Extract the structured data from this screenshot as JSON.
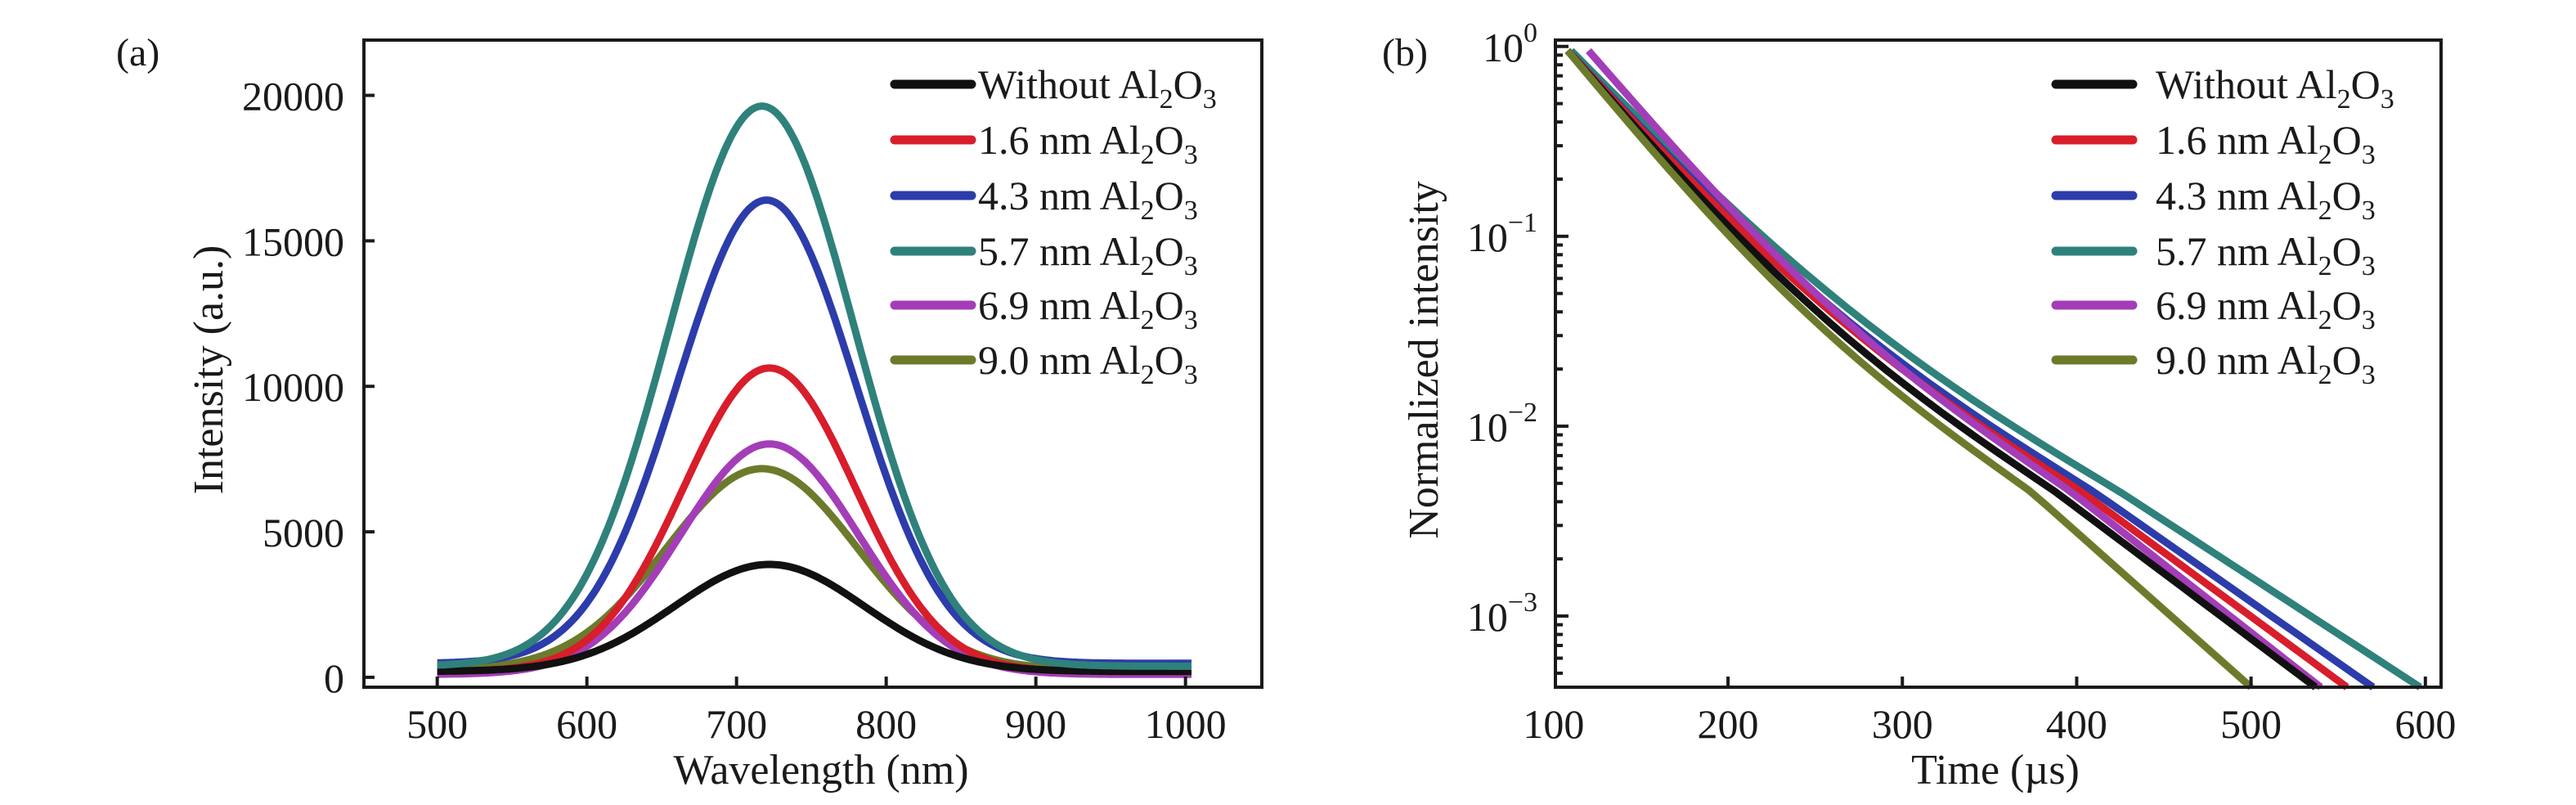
{
  "chart_data": [
    {
      "panel": "(a)",
      "type": "line",
      "title": "",
      "xlabel": "Wavelength (nm)",
      "ylabel": "Intensity (a.u.)",
      "xlim": [
        451,
        1051
      ],
      "ylim": [
        -340,
        21900
      ],
      "xticks": [
        500,
        600,
        700,
        800,
        900,
        1000
      ],
      "xtick_labels": [
        "500",
        "600",
        "700",
        "800",
        "900",
        "1000"
      ],
      "yticks": [
        0,
        5000,
        10000,
        15000,
        20000
      ],
      "ytick_labels": [
        "0",
        "5000",
        "10000",
        "15000",
        "20000"
      ],
      "grid": false,
      "legend_position": "top-right",
      "x_range": [
        500,
        1005
      ],
      "series": [
        {
          "name": "Without Al2O3",
          "label_main": "Without Al",
          "label_mid": "O",
          "color": "#111111",
          "peak_wavelength": 722,
          "peak_intensity": 3880,
          "baseline": 200,
          "fwhm_nm": 150
        },
        {
          "name": "1.6 nm Al2O3",
          "label_main": "1.6 nm Al",
          "label_mid": "O",
          "color": "#d81d2b",
          "peak_wavelength": 722,
          "peak_intensity": 10630,
          "baseline": 200,
          "fwhm_nm": 135
        },
        {
          "name": "4.3 nm Al2O3",
          "label_main": "4.3 nm Al",
          "label_mid": "O",
          "color": "#2c3cab",
          "peak_wavelength": 720,
          "peak_intensity": 16400,
          "baseline": 480,
          "fwhm_nm": 140
        },
        {
          "name": "5.7 nm Al2O3",
          "label_main": "5.7 nm Al",
          "label_mid": "O",
          "color": "#2f817b",
          "peak_wavelength": 717,
          "peak_intensity": 19630,
          "baseline": 380,
          "fwhm_nm": 145
        },
        {
          "name": "6.9 nm Al2O3",
          "label_main": "6.9 nm Al",
          "label_mid": "O",
          "color": "#a43db8",
          "peak_wavelength": 722,
          "peak_intensity": 8020,
          "baseline": 100,
          "fwhm_nm": 140
        },
        {
          "name": "9.0 nm Al2O3",
          "label_main": "9.0 nm Al",
          "label_mid": "O",
          "color": "#6c7b2b",
          "peak_wavelength": 717,
          "peak_intensity": 7170,
          "baseline": 260,
          "fwhm_nm": 150
        }
      ]
    },
    {
      "panel": "(b)",
      "type": "line",
      "title": "",
      "xlabel": "Time (µs)",
      "ylabel": "Normalized intensity",
      "yscale": "log",
      "xlim": [
        101,
        609
      ],
      "ylim": [
        0.000422,
        1.08
      ],
      "xticks": [
        100,
        200,
        300,
        400,
        500,
        600
      ],
      "xtick_labels": [
        "100",
        "200",
        "300",
        "400",
        "500",
        "600"
      ],
      "yticks": [
        1,
        0.1,
        0.01,
        0.001
      ],
      "ytick_labels": [
        {
          "base": "10",
          "exp": "0"
        },
        {
          "base": "10",
          "exp": "−1"
        },
        {
          "base": "10",
          "exp": "−2"
        },
        {
          "base": "10",
          "exp": "−3"
        }
      ],
      "grid": false,
      "legend_position": "top-right",
      "series": [
        {
          "name": "Without Al2O3",
          "label_main": "Without Al",
          "label_mid": "O",
          "color": "#111111",
          "t_start": 108,
          "t_at_0_0045": 388,
          "t_end": 537
        },
        {
          "name": "1.6 nm Al2O3",
          "label_main": "1.6 nm Al",
          "label_mid": "O",
          "color": "#d81d2b",
          "t_start": 108,
          "t_at_0_0045": 403,
          "t_end": 555
        },
        {
          "name": "4.3 nm Al2O3",
          "label_main": "4.3 nm Al",
          "label_mid": "O",
          "color": "#2c3cab",
          "t_start": 108,
          "t_at_0_0045": 410,
          "t_end": 570
        },
        {
          "name": "5.7 nm Al2O3",
          "label_main": "5.7 nm Al",
          "label_mid": "O",
          "color": "#2f817b",
          "t_start": 110,
          "t_at_0_0045": 425,
          "t_end": 597
        },
        {
          "name": "6.9 nm Al2O3",
          "label_main": "6.9 nm Al",
          "label_mid": "O",
          "color": "#a43db8",
          "t_start": 120,
          "t_at_0_0045": 397,
          "t_end": 540
        },
        {
          "name": "9.0 nm Al2O3",
          "label_main": "9.0 nm Al",
          "label_mid": "O",
          "color": "#6c7b2b",
          "t_start": 108,
          "t_at_0_0045": 374,
          "t_end": 500
        }
      ]
    }
  ],
  "legend_subscripts": {
    "sub1": "2",
    "sub2": "3"
  }
}
